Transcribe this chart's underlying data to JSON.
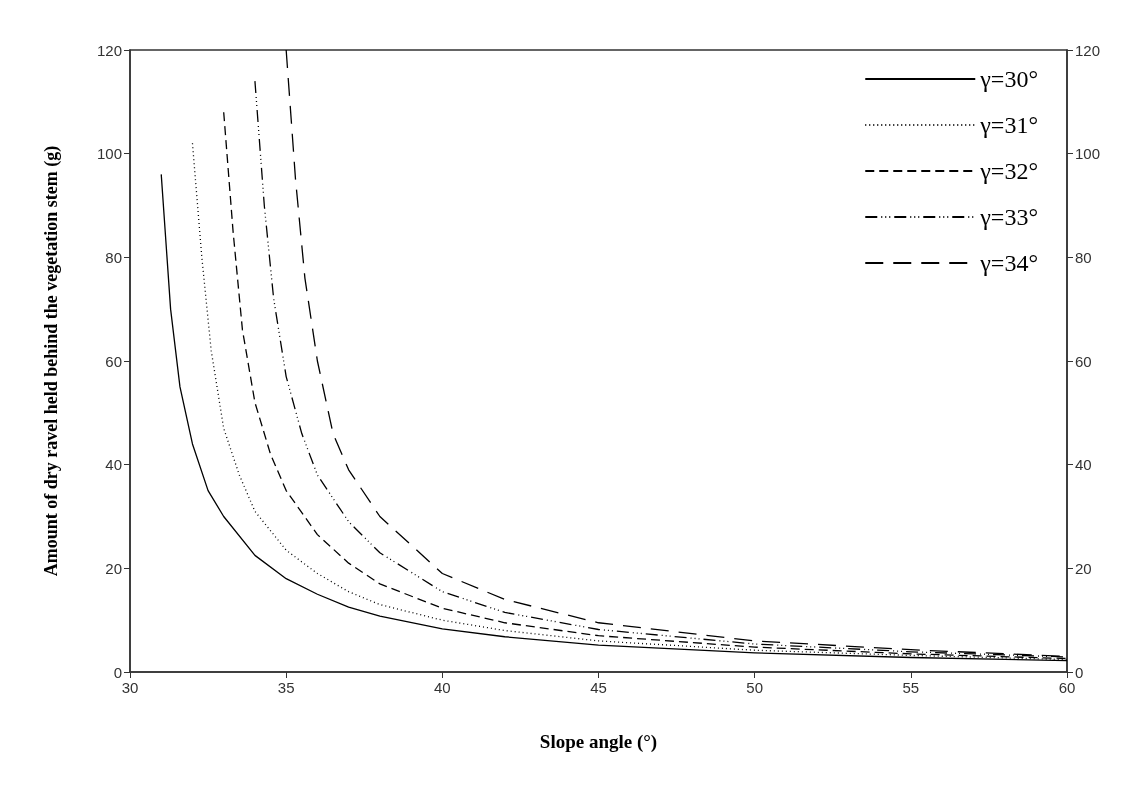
{
  "chart_data": {
    "type": "line",
    "xlabel": "Slope angle (°)",
    "ylabel": "Amount of dry ravel held behind the vegetation stem (g)",
    "xlim": [
      30,
      60
    ],
    "xticks": [
      30,
      35,
      40,
      45,
      50,
      55,
      60
    ],
    "ylim": [
      0,
      120
    ],
    "yticks": [
      0,
      20,
      40,
      60,
      80,
      100,
      120
    ],
    "y2lim": [
      0,
      120
    ],
    "y2ticks": [
      0,
      20,
      40,
      60,
      80,
      100,
      120
    ],
    "legend": "top right",
    "marker": "none",
    "series": [
      {
        "name": "γ=30°",
        "color": "#000000",
        "line_style": "solid",
        "x": [
          31,
          31.3,
          31.6,
          32,
          32.5,
          33,
          34,
          35,
          36,
          37,
          38,
          40,
          42,
          45,
          50,
          55,
          60
        ],
        "values": [
          96,
          70,
          55,
          44,
          35,
          30,
          22.5,
          18,
          15,
          12.5,
          10.8,
          8.3,
          6.8,
          5.2,
          3.7,
          2.8,
          2.2
        ]
      },
      {
        "name": "γ=31°",
        "color": "#000000",
        "line_style": "dotted",
        "x": [
          32,
          32.3,
          32.6,
          33,
          33.5,
          34,
          35,
          36,
          37,
          38,
          40,
          42,
          45,
          50,
          55,
          60
        ],
        "values": [
          102,
          80,
          62,
          47,
          38,
          31,
          23.5,
          19,
          15.5,
          13,
          10,
          8,
          6,
          4.2,
          3.2,
          2.4
        ]
      },
      {
        "name": "γ=32°",
        "color": "#000000",
        "line_style": "dashed",
        "x": [
          33,
          33.3,
          33.6,
          34,
          34.5,
          35,
          36,
          37,
          38,
          40,
          42,
          45,
          50,
          55,
          60
        ],
        "values": [
          108,
          85,
          66,
          52,
          42,
          35,
          26.5,
          21,
          17,
          12.3,
          9.5,
          7,
          4.8,
          3.5,
          2.6
        ]
      },
      {
        "name": "γ=33°",
        "color": "#000000",
        "line_style": "dashdotdot",
        "x": [
          34,
          34.3,
          34.6,
          35,
          35.5,
          36,
          37,
          38,
          40,
          42,
          45,
          50,
          55,
          60
        ],
        "values": [
          114,
          90,
          72,
          57,
          46,
          38,
          29,
          23,
          15.5,
          11.5,
          8.2,
          5.4,
          3.9,
          2.9
        ]
      },
      {
        "name": "γ=34°",
        "color": "#000000",
        "line_style": "longdash",
        "x": [
          35,
          35.3,
          35.6,
          36,
          36.5,
          37,
          38,
          40,
          42,
          45,
          50,
          55,
          60
        ],
        "values": [
          120,
          95,
          76,
          60,
          46,
          39,
          30,
          19,
          14,
          9.5,
          6,
          4.3,
          3
        ]
      }
    ]
  }
}
